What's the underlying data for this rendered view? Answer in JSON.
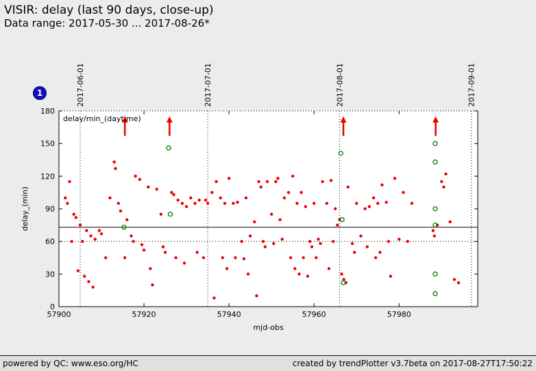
{
  "header": {
    "title": "VISIR: delay (last 90 days, close-up)",
    "subtitle": "Data range: 2017-05-30 ... 2017-08-26*"
  },
  "badge": {
    "label": "1",
    "color": "#1111bb"
  },
  "footer": {
    "left": "powered by QC: www.eso.org/HC",
    "right": "created by trendPlotter v3.7beta on 2017-08-27T17:50:22"
  },
  "chart_data": {
    "type": "scatter",
    "legend": "delay/min_(daytime)",
    "xlabel": "mjd-obs",
    "ylabel": "delay_(min)",
    "xlim": [
      57900,
      57998.5
    ],
    "ylim": [
      0,
      180
    ],
    "xticks": [
      57900,
      57920,
      57940,
      57960,
      57980
    ],
    "yticks": [
      0,
      30,
      60,
      90,
      120,
      150,
      180
    ],
    "grid": "vertical-dotted-at-months",
    "legend_position": "top-left-inside",
    "month_lines": [
      {
        "label": "2017-06-01",
        "mjd": 57905
      },
      {
        "label": "2017-07-01",
        "mjd": 57935
      },
      {
        "label": "2017-08-01",
        "mjd": 57966
      },
      {
        "label": "2017-09-01",
        "mjd": 57997
      }
    ],
    "threshold_solid": 73,
    "threshold_dotted": 60,
    "arrows": {
      "x": [
        57915.5,
        57926,
        57966.9,
        57988.6
      ],
      "y_from": 157,
      "y_to": 175,
      "color": "#ee0000"
    },
    "series": [
      {
        "name": "delay",
        "marker": "dot",
        "color": "#ee0000",
        "points": [
          [
            57901.5,
            100
          ],
          [
            57902,
            95
          ],
          [
            57902.5,
            115
          ],
          [
            57903,
            60
          ],
          [
            57903.5,
            85
          ],
          [
            57904,
            82
          ],
          [
            57904.5,
            33
          ],
          [
            57905,
            75
          ],
          [
            57905.5,
            60
          ],
          [
            57906,
            28
          ],
          [
            57906.5,
            70
          ],
          [
            57907,
            23
          ],
          [
            57907.5,
            65
          ],
          [
            57908,
            18
          ],
          [
            57908.5,
            62
          ],
          [
            57909.5,
            70
          ],
          [
            57910,
            67
          ],
          [
            57911,
            45
          ],
          [
            57912,
            100
          ],
          [
            57913,
            133
          ],
          [
            57913.3,
            127
          ],
          [
            57914,
            95
          ],
          [
            57914.5,
            88
          ],
          [
            57915.5,
            45
          ],
          [
            57916,
            80
          ],
          [
            57917,
            65
          ],
          [
            57917.5,
            60
          ],
          [
            57918,
            120
          ],
          [
            57919,
            117
          ],
          [
            57919.5,
            57
          ],
          [
            57920,
            52
          ],
          [
            57921,
            110
          ],
          [
            57921.5,
            35
          ],
          [
            57922,
            20
          ],
          [
            57923,
            108
          ],
          [
            57924,
            85
          ],
          [
            57924.5,
            55
          ],
          [
            57925,
            50
          ],
          [
            57926.5,
            105
          ],
          [
            57927,
            103
          ],
          [
            57927.5,
            45
          ],
          [
            57928,
            98
          ],
          [
            57929,
            95
          ],
          [
            57929.5,
            40
          ],
          [
            57930,
            92
          ],
          [
            57931,
            100
          ],
          [
            57932,
            95
          ],
          [
            57932.5,
            50
          ],
          [
            57933,
            98
          ],
          [
            57934,
            45
          ],
          [
            57934.5,
            98
          ],
          [
            57935,
            95
          ],
          [
            57936,
            105
          ],
          [
            57936.5,
            8
          ],
          [
            57937,
            115
          ],
          [
            57938,
            100
          ],
          [
            57938.5,
            45
          ],
          [
            57939,
            95
          ],
          [
            57939.5,
            35
          ],
          [
            57940,
            118
          ],
          [
            57941,
            95
          ],
          [
            57941.5,
            45
          ],
          [
            57942,
            96
          ],
          [
            57943,
            60
          ],
          [
            57943.5,
            44
          ],
          [
            57944,
            100
          ],
          [
            57944.5,
            30
          ],
          [
            57945,
            65
          ],
          [
            57946,
            78
          ],
          [
            57946.5,
            10
          ],
          [
            57947,
            115
          ],
          [
            57947.5,
            110
          ],
          [
            57948,
            60
          ],
          [
            57948.5,
            55
          ],
          [
            57949,
            115
          ],
          [
            57950,
            85
          ],
          [
            57950.5,
            58
          ],
          [
            57951,
            115
          ],
          [
            57951.5,
            118
          ],
          [
            57952,
            80
          ],
          [
            57952.5,
            62
          ],
          [
            57953,
            100
          ],
          [
            57954,
            105
          ],
          [
            57954.5,
            45
          ],
          [
            57955,
            120
          ],
          [
            57955.5,
            35
          ],
          [
            57956,
            95
          ],
          [
            57956.5,
            30
          ],
          [
            57957,
            105
          ],
          [
            57957.5,
            45
          ],
          [
            57958,
            92
          ],
          [
            57958.5,
            28
          ],
          [
            57959,
            60
          ],
          [
            57959.5,
            55
          ],
          [
            57960,
            95
          ],
          [
            57960.5,
            45
          ],
          [
            57961,
            62
          ],
          [
            57961.5,
            58
          ],
          [
            57962,
            115
          ],
          [
            57963,
            95
          ],
          [
            57963.5,
            35
          ],
          [
            57964,
            116
          ],
          [
            57964.5,
            60
          ],
          [
            57965,
            90
          ],
          [
            57965.5,
            75
          ],
          [
            57966,
            80
          ],
          [
            57966.5,
            30
          ],
          [
            57967,
            25
          ],
          [
            57967.5,
            22
          ],
          [
            57968,
            110
          ],
          [
            57969,
            58
          ],
          [
            57969.5,
            50
          ],
          [
            57970,
            95
          ],
          [
            57971,
            65
          ],
          [
            57972,
            90
          ],
          [
            57972.5,
            55
          ],
          [
            57973,
            92
          ],
          [
            57974,
            100
          ],
          [
            57974.5,
            45
          ],
          [
            57975,
            95
          ],
          [
            57975.5,
            50
          ],
          [
            57976,
            112
          ],
          [
            57977,
            96
          ],
          [
            57977.5,
            60
          ],
          [
            57978,
            28
          ],
          [
            57979,
            118
          ],
          [
            57980,
            62
          ],
          [
            57981,
            105
          ],
          [
            57982,
            60
          ],
          [
            57983,
            95
          ],
          [
            57988,
            70
          ],
          [
            57988.3,
            65
          ],
          [
            57989,
            75
          ],
          [
            57990,
            115
          ],
          [
            57990.5,
            110
          ],
          [
            57991,
            122
          ],
          [
            57992,
            78
          ],
          [
            57993,
            25
          ],
          [
            57994,
            22
          ]
        ]
      },
      {
        "name": "daytime",
        "marker": "open-circle",
        "color": "#007700",
        "points": [
          [
            57915.3,
            73
          ],
          [
            57925.8,
            146
          ],
          [
            57926.2,
            85
          ],
          [
            57966.3,
            141
          ],
          [
            57966.6,
            80
          ],
          [
            57966.9,
            22
          ],
          [
            57988.5,
            150
          ],
          [
            57988.5,
            133
          ],
          [
            57988.5,
            90
          ],
          [
            57988.5,
            75
          ],
          [
            57988.5,
            30
          ],
          [
            57988.5,
            12
          ]
        ]
      }
    ]
  }
}
